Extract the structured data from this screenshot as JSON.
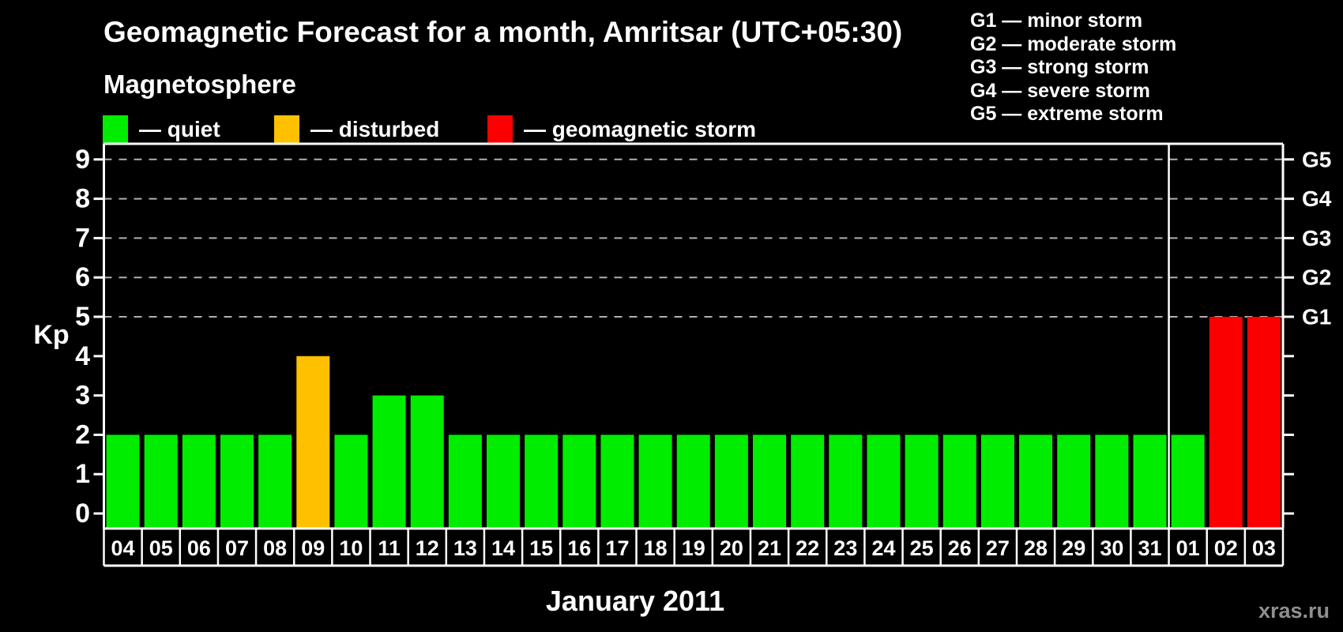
{
  "header": {
    "title": "Geomagnetic Forecast for a month, Amritsar (UTC+05:30)"
  },
  "legend": {
    "title": "Magnetosphere",
    "items": [
      {
        "key": "quiet",
        "label": "— quiet",
        "color": "#00ed00"
      },
      {
        "key": "disturbed",
        "label": "— disturbed",
        "color": "#ffc000"
      },
      {
        "key": "storm",
        "label": "— geomagnetic storm",
        "color": "#fa0000"
      }
    ]
  },
  "gscale_legend": [
    "G1 — minor storm",
    "G2 — moderate storm",
    "G3 — strong storm",
    "G4 — severe storm",
    "G5 — extreme storm"
  ],
  "chart_data": {
    "type": "bar",
    "title": "Geomagnetic Forecast for a month, Amritsar (UTC+05:30)",
    "xlabel": "January 2011",
    "ylabel_left": "Kp",
    "ylim": [
      0,
      9
    ],
    "yticks": [
      0,
      1,
      2,
      3,
      4,
      5,
      6,
      7,
      8,
      9
    ],
    "gridlines_at": [
      5,
      6,
      7,
      8,
      9
    ],
    "grid_style": "dashed",
    "legend_position": "top",
    "right_axis_labels": [
      {
        "kp": 5,
        "label": "G1"
      },
      {
        "kp": 6,
        "label": "G2"
      },
      {
        "kp": 7,
        "label": "G3"
      },
      {
        "kp": 8,
        "label": "G4"
      },
      {
        "kp": 9,
        "label": "G5"
      }
    ],
    "categories": [
      "04",
      "05",
      "06",
      "07",
      "08",
      "09",
      "10",
      "11",
      "12",
      "13",
      "14",
      "15",
      "16",
      "17",
      "18",
      "19",
      "20",
      "21",
      "22",
      "23",
      "24",
      "25",
      "26",
      "27",
      "28",
      "29",
      "30",
      "31",
      "01",
      "02",
      "03"
    ],
    "values": [
      2,
      2,
      2,
      2,
      2,
      4,
      2,
      3,
      3,
      2,
      2,
      2,
      2,
      2,
      2,
      2,
      2,
      2,
      2,
      2,
      2,
      2,
      2,
      2,
      2,
      2,
      2,
      2,
      2,
      5,
      5
    ],
    "statuses": [
      "quiet",
      "quiet",
      "quiet",
      "quiet",
      "quiet",
      "disturbed",
      "quiet",
      "quiet",
      "quiet",
      "quiet",
      "quiet",
      "quiet",
      "quiet",
      "quiet",
      "quiet",
      "quiet",
      "quiet",
      "quiet",
      "quiet",
      "quiet",
      "quiet",
      "quiet",
      "quiet",
      "quiet",
      "quiet",
      "quiet",
      "quiet",
      "quiet",
      "quiet",
      "storm",
      "storm"
    ],
    "status_colors": {
      "quiet": "#00ed00",
      "disturbed": "#ffc000",
      "storm": "#fa0000"
    },
    "month_separator_after_index": 27
  },
  "footer": {
    "watermark": "xras.ru"
  }
}
